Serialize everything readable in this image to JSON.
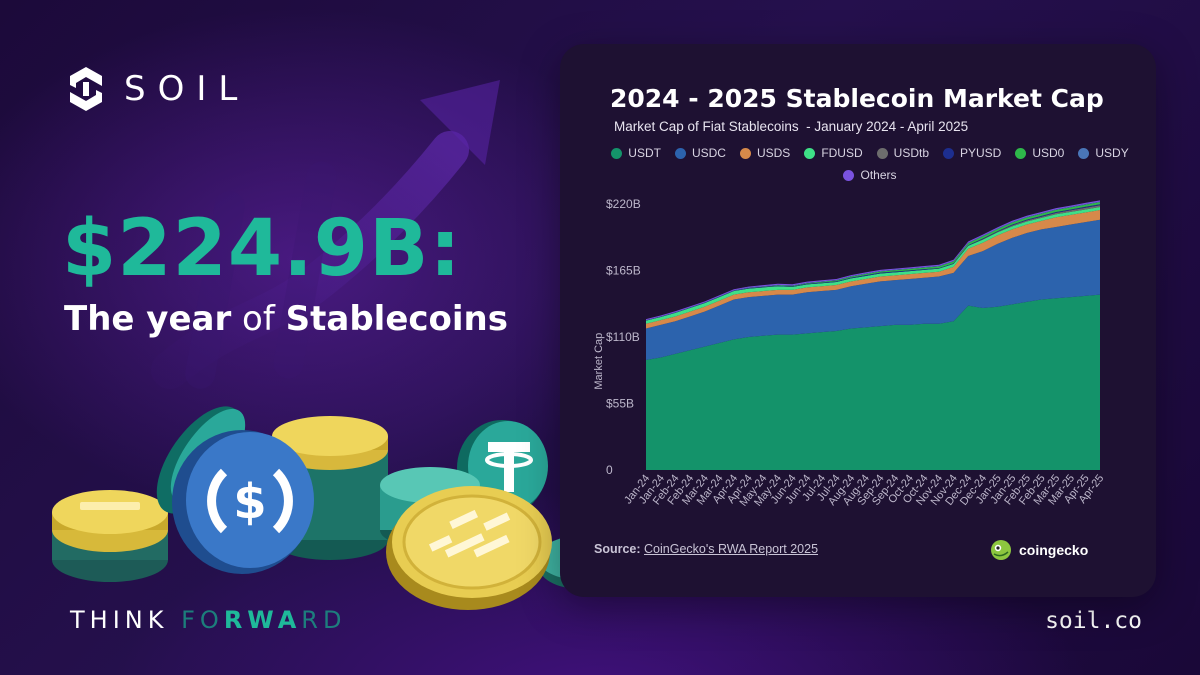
{
  "brand": {
    "name": "SOIL"
  },
  "headline": {
    "value": "$224.9B:",
    "sub_bold_1": "The year",
    "sub_normal": "of",
    "sub_bold_2": "Stablecoins"
  },
  "tagline": {
    "part1": "THINK ",
    "part2": "FO",
    "part3": "RWA",
    "part4": "RD"
  },
  "website": "soil.co",
  "colors": {
    "accent": "#1fb99a",
    "background": "#1c0a3a",
    "card": "#1e1132"
  },
  "chart": {
    "title": "2024 - 2025 Stablecoin Market Cap",
    "subtitle": "Market Cap of Fiat Stablecoins  - January 2024 - April 2025",
    "source_label": "Source:",
    "source_text": "CoinGecko's RWA Report 2025",
    "logo_text": "coingecko"
  },
  "chart_data": {
    "type": "area",
    "stacked": true,
    "title": "2024 - 2025 Stablecoin Market Cap",
    "subtitle": "Market Cap of Fiat Stablecoins  - January 2024 - April 2025",
    "ylabel": "Market Cap",
    "xlabel": "",
    "ylim": [
      0,
      220
    ],
    "yticks": [
      0,
      55,
      110,
      165,
      220
    ],
    "ytick_labels": [
      "0",
      "$55B",
      "$110B",
      "$165B",
      "$220B"
    ],
    "x": [
      "Jan-24",
      "Jan-24",
      "Feb-24",
      "Feb-24",
      "Mar-24",
      "Mar-24",
      "Apr-24",
      "Apr-24",
      "May-24",
      "May-24",
      "Jun-24",
      "Jun-24",
      "Jul-24",
      "Jul-24",
      "Aug-24",
      "Aug-24",
      "Sep-24",
      "Sep-24",
      "Oct-24",
      "Oct-24",
      "Nov-24",
      "Nov-24",
      "Dec-24",
      "Dec-24",
      "Jan-25",
      "Jan-25",
      "Feb-25",
      "Feb-25",
      "Mar-25",
      "Mar-25",
      "Apr-25",
      "Apr-25"
    ],
    "legend_position": "top",
    "grid": false,
    "series": [
      {
        "name": "USDT",
        "color": "#14936a",
        "values": [
          91,
          93,
          96,
          99,
          102,
          105,
          108,
          110,
          111,
          112,
          112,
          113,
          114,
          115,
          117,
          118,
          119,
          120,
          120,
          121,
          121,
          123,
          136,
          134,
          135,
          137,
          139,
          141,
          142,
          143,
          144,
          145
        ]
      },
      {
        "name": "USDC",
        "color": "#2c63ad",
        "values": [
          26,
          27,
          27,
          28,
          29,
          31,
          33,
          33,
          33,
          33,
          33,
          34,
          34,
          34,
          35,
          36,
          37,
          37,
          38,
          38,
          39,
          40,
          41,
          47,
          52,
          55,
          57,
          58,
          59,
          60,
          61,
          62
        ]
      },
      {
        "name": "USDS",
        "color": "#d6894a",
        "values": [
          4,
          4,
          4,
          4,
          4,
          4,
          4,
          4,
          4,
          4,
          4,
          4,
          4,
          4,
          4,
          4,
          4,
          4,
          4,
          4,
          4,
          5,
          6,
          7,
          7,
          7,
          7,
          7,
          8,
          8,
          8,
          8
        ]
      },
      {
        "name": "FDUSD",
        "color": "#3ee087",
        "values": [
          2.5,
          2.5,
          3,
          3,
          3,
          3,
          3,
          3,
          3,
          3,
          2.5,
          2.5,
          2.5,
          2.5,
          2.5,
          2.5,
          2.5,
          2.5,
          2.5,
          2.5,
          2.5,
          2.5,
          2.5,
          2.5,
          2.5,
          2.5,
          2.5,
          2.5,
          2.5,
          2.5,
          2.5,
          2.5
        ]
      },
      {
        "name": "USDtb",
        "color": "#6d6d6d",
        "values": [
          0,
          0,
          0,
          0,
          0,
          0,
          0,
          0,
          0,
          0,
          0,
          0,
          0,
          0,
          0,
          0,
          0,
          0,
          0,
          0,
          0,
          0,
          0,
          0.5,
          0.5,
          0.8,
          1,
          1,
          1.2,
          1.3,
          1.4,
          1.5
        ]
      },
      {
        "name": "PYUSD",
        "color": "#1d2e8f",
        "values": [
          0.2,
          0.2,
          0.2,
          0.2,
          0.3,
          0.3,
          0.3,
          0.4,
          0.4,
          0.4,
          0.4,
          0.5,
          0.5,
          0.5,
          0.6,
          0.7,
          0.7,
          0.7,
          0.6,
          0.6,
          0.5,
          0.5,
          0.5,
          0.5,
          0.5,
          0.6,
          0.6,
          0.7,
          0.7,
          0.7,
          0.8,
          0.8
        ]
      },
      {
        "name": "USD0",
        "color": "#2eb84a",
        "values": [
          0,
          0,
          0,
          0,
          0,
          0,
          0,
          0.1,
          0.2,
          0.3,
          0.4,
          0.5,
          0.6,
          0.7,
          0.8,
          0.9,
          1,
          1.1,
          1.2,
          1.3,
          1.4,
          1.5,
          1.6,
          1.7,
          1.7,
          1.7,
          1.7,
          1.7,
          1.7,
          1.7,
          1.7,
          1.7
        ]
      },
      {
        "name": "USDY",
        "color": "#4a76b8",
        "values": [
          0.3,
          0.3,
          0.3,
          0.3,
          0.3,
          0.3,
          0.4,
          0.4,
          0.4,
          0.4,
          0.4,
          0.4,
          0.4,
          0.4,
          0.4,
          0.4,
          0.4,
          0.4,
          0.4,
          0.4,
          0.4,
          0.4,
          0.4,
          0.5,
          0.5,
          0.5,
          0.5,
          0.5,
          0.5,
          0.5,
          0.5,
          0.5
        ]
      },
      {
        "name": "Others",
        "color": "#7a52e0",
        "values": [
          0.8,
          0.8,
          0.8,
          0.8,
          0.8,
          0.8,
          0.8,
          0.8,
          0.9,
          0.9,
          0.9,
          0.9,
          0.9,
          0.9,
          0.9,
          0.9,
          0.9,
          0.9,
          0.9,
          0.9,
          1,
          1,
          1,
          1,
          1,
          1,
          1,
          1,
          1,
          1,
          1,
          1
        ]
      }
    ]
  }
}
